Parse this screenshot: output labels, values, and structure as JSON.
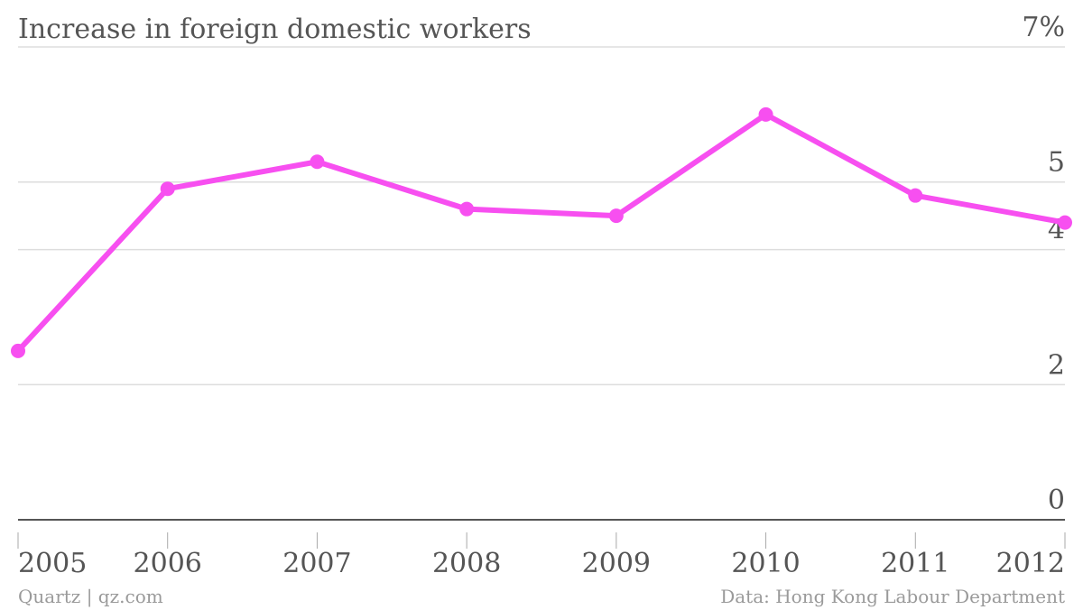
{
  "chart_data": {
    "type": "line",
    "title": "Increase in foreign domestic workers",
    "categories": [
      "2005",
      "2006",
      "2007",
      "2008",
      "2009",
      "2010",
      "2011",
      "2012"
    ],
    "series": [
      {
        "values": [
          2.5,
          4.9,
          5.3,
          4.6,
          4.5,
          6.0,
          4.8,
          4.4
        ],
        "color": "#f74ff0"
      }
    ],
    "y_ticks": [
      {
        "value": 0,
        "label": "0"
      },
      {
        "value": 2,
        "label": "2"
      },
      {
        "value": 4,
        "label": "4"
      },
      {
        "value": 5,
        "label": "5"
      },
      {
        "value": 7,
        "label": "7%"
      }
    ],
    "ylim": [
      0,
      7
    ],
    "y_axis_side": "right",
    "grid": true,
    "xlabel": "",
    "ylabel": ""
  },
  "footer": {
    "source_left": "Quartz | qz.com",
    "source_right": "Data: Hong Kong Labour Department"
  }
}
